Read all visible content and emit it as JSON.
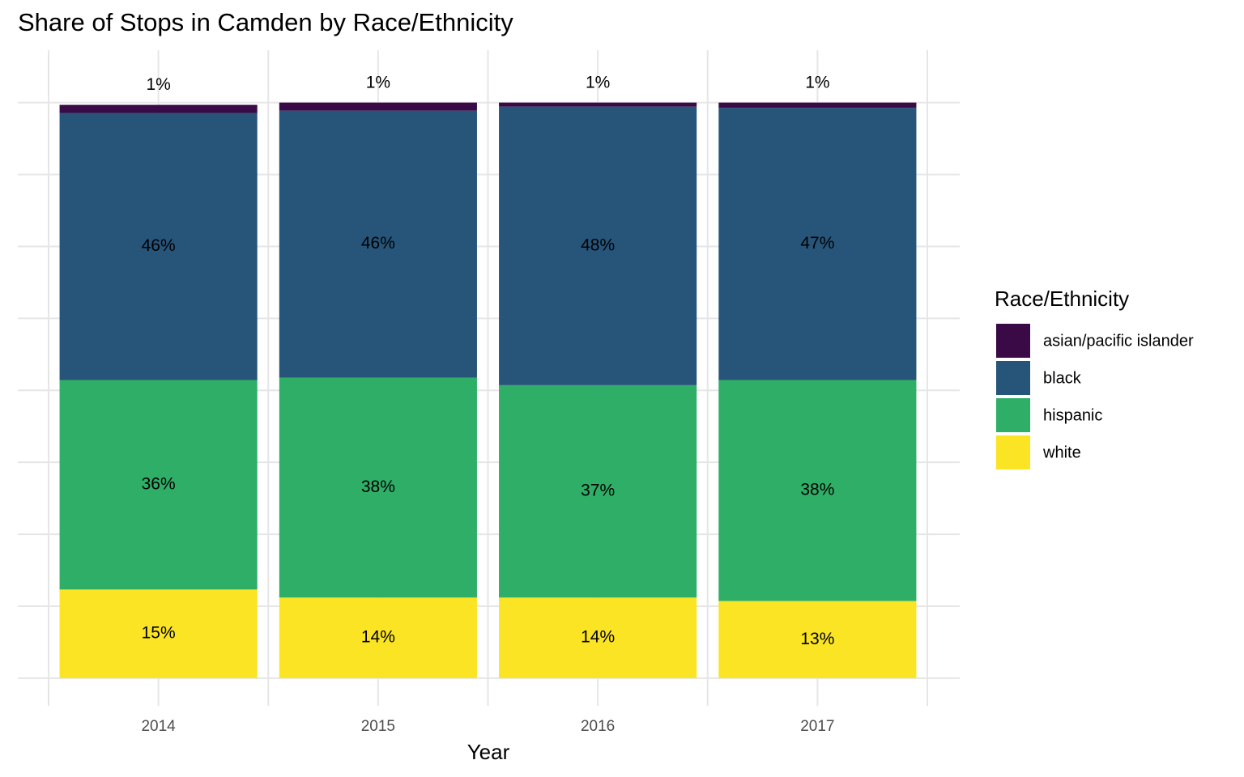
{
  "chart_data": {
    "type": "stacked_bar",
    "title": "Share of Stops in Camden by Race/Ethnicity",
    "x_label": "Year",
    "legend_title": "Race/Ethnicity",
    "legend_position": "right",
    "grid": true,
    "categories": [
      "2014",
      "2015",
      "2016",
      "2017"
    ],
    "ylim": [
      -4.8,
      109.1
    ],
    "yticks": [
      0,
      12.5,
      25,
      37.5,
      50,
      62.5,
      75,
      87.5,
      100
    ],
    "series": [
      {
        "name": "asian/pacific islander",
        "color": "#3a0a47",
        "values": [
          1.4,
          1.4,
          0.7,
          0.9
        ],
        "value_labels": [
          "1%",
          "1%",
          "1%",
          "1%"
        ]
      },
      {
        "name": "black",
        "color": "#27557a",
        "values": [
          46.4,
          46.4,
          48.4,
          47.3
        ],
        "value_labels": [
          "46%",
          "46%",
          "48%",
          "47%"
        ]
      },
      {
        "name": "hispanic",
        "color": "#2fae67",
        "values": [
          36.4,
          38.2,
          36.9,
          38.4
        ],
        "value_labels": [
          "36%",
          "38%",
          "37%",
          "38%"
        ]
      },
      {
        "name": "white",
        "color": "#fae424",
        "values": [
          15.4,
          14.0,
          14.0,
          13.4
        ],
        "value_labels": [
          "15%",
          "14%",
          "14%",
          "13%"
        ]
      }
    ]
  }
}
